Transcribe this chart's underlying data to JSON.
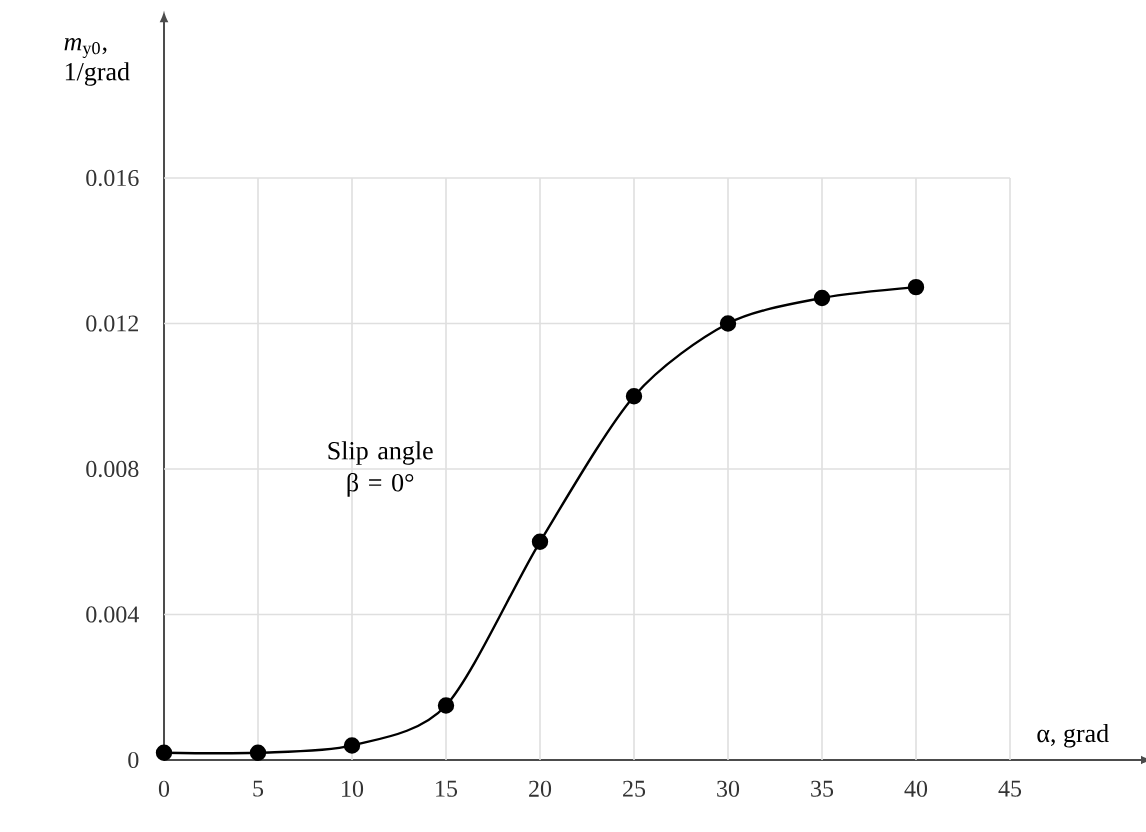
{
  "chart_data": {
    "type": "line",
    "xlabel": "α, grad",
    "ylabel": "*m*$_{y0}$, 1/grad",
    "annotations": [
      "Slip angle β = 0°"
    ],
    "x": [
      0,
      5,
      10,
      15,
      20,
      25,
      30,
      35,
      40
    ],
    "series": [
      {
        "color": "#000000",
        "values": [
          0.0002,
          0.0002,
          0.0004,
          0.0015,
          0.006,
          0.01,
          0.012,
          0.0127,
          0.013
        ]
      }
    ],
    "xlim": [
      0,
      52
    ],
    "ylim": [
      0,
      0.0203
    ],
    "xticks": [
      0,
      5,
      10,
      15,
      20,
      25,
      30,
      35,
      40,
      45
    ],
    "yticks": [
      0,
      0.004,
      0.008,
      0.012,
      0.016
    ],
    "grid": true,
    "marker": "circle",
    "line_style": "solid"
  }
}
